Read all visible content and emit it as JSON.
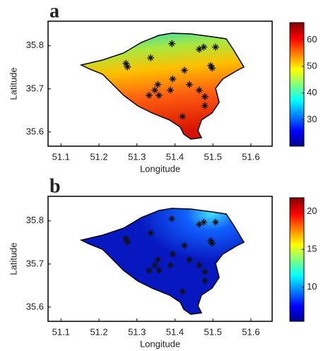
{
  "panels": [
    {
      "type": "map",
      "label": "a",
      "xlabel": "Longitude",
      "ylabel": "Latitude",
      "xlim": [
        51.066,
        51.656
      ],
      "xticks": [
        51.1,
        51.2,
        51.3,
        51.4,
        51.5,
        51.6
      ],
      "ylim": [
        35.567,
        35.857
      ],
      "yticks": [
        35.6,
        35.7,
        35.8
      ],
      "colorbar": {
        "lim": [
          20,
          67
        ],
        "ticks": [
          30,
          40,
          50,
          60
        ]
      }
    },
    {
      "type": "map",
      "label": "b",
      "xlabel": "Longitude",
      "ylabel": "Latitude",
      "xlim": [
        51.066,
        51.656
      ],
      "xticks": [
        51.1,
        51.2,
        51.3,
        51.4,
        51.5,
        51.6
      ],
      "ylim": [
        35.567,
        35.857
      ],
      "yticks": [
        35.6,
        35.7,
        35.8
      ],
      "colorbar": {
        "lim": [
          5.5,
          22
        ],
        "ticks": [
          10,
          15,
          20
        ]
      }
    }
  ],
  "stations": {
    "x": [
      51.392,
      51.271,
      51.275,
      51.336,
      51.464,
      51.476,
      51.507,
      51.494,
      51.498,
      51.425,
      51.394,
      51.355,
      51.438,
      51.347,
      51.388,
      51.332,
      51.358,
      51.464,
      51.479,
      51.479,
      51.42
    ],
    "y": [
      35.805,
      35.759,
      35.751,
      35.772,
      35.792,
      35.797,
      35.797,
      35.754,
      35.748,
      35.743,
      35.723,
      35.71,
      35.71,
      35.697,
      35.697,
      35.685,
      35.685,
      35.697,
      35.682,
      35.661,
      35.636
    ]
  }
}
